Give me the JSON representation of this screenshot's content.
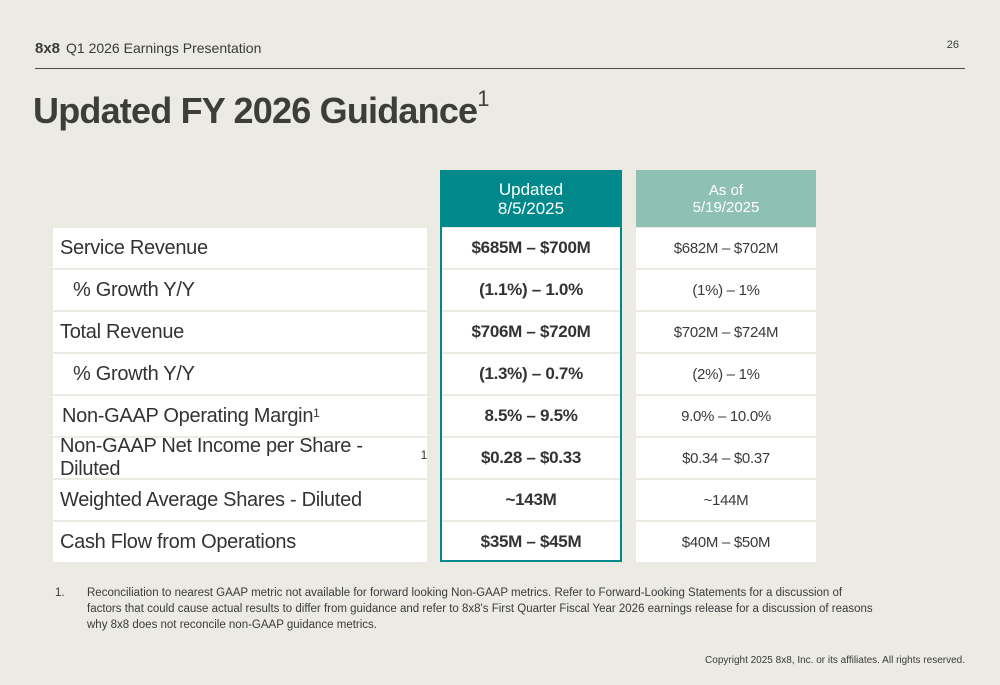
{
  "header": {
    "logo": "8x8",
    "deck_title": "Q1 2026 Earnings Presentation",
    "page_number": "26"
  },
  "slide": {
    "title": "Updated FY 2026 Guidance",
    "title_sup": "1"
  },
  "table": {
    "col_updated": {
      "line1": "Updated",
      "line2": "8/5/2025"
    },
    "col_asof": {
      "line1": "As of",
      "line2": "5/19/2025"
    },
    "rows": [
      {
        "label": "Service Revenue",
        "sup": "",
        "updated": "$685M – $700M",
        "asof": "$682M – $702M"
      },
      {
        "label": "% Growth Y/Y",
        "sup": "",
        "updated": "(1.1%) – 1.0%",
        "asof": "(1%) – 1%"
      },
      {
        "label": "Total Revenue",
        "sup": "",
        "updated": "$706M – $720M",
        "asof": "$702M – $724M"
      },
      {
        "label": "% Growth Y/Y",
        "sup": "",
        "updated": "(1.3%) – 0.7%",
        "asof": "(2%) – 1%"
      },
      {
        "label": "Non-GAAP Operating Margin",
        "sup": "1",
        "updated": "8.5% – 9.5%",
        "asof": "9.0% – 10.0%"
      },
      {
        "label": "Non-GAAP Net Income per Share - Diluted",
        "sup": "1",
        "updated": "$0.28 – $0.33",
        "asof": "$0.34 – $0.37"
      },
      {
        "label": "Weighted Average Shares - Diluted",
        "sup": "",
        "updated": "~143M",
        "asof": "~144M"
      },
      {
        "label": "Cash Flow from Operations",
        "sup": "",
        "updated": "$35M – $45M",
        "asof": "$40M – $50M"
      }
    ]
  },
  "footnote": {
    "number": "1.",
    "text": "Reconciliation to nearest GAAP metric not available for forward looking Non-GAAP metrics. Refer to Forward-Looking Statements for a discussion of factors that could cause actual results to differ from guidance and refer to 8x8's First Quarter Fiscal Year 2026 earnings release for a discussion of reasons why 8x8 does not reconcile non-GAAP guidance metrics."
  },
  "copyright": "Copyright 2025 8x8, Inc. or its affiliates. All rights reserved.",
  "colors": {
    "background": "#ebeae3",
    "updated_header": "#00888a",
    "asof_header": "#8fc0b4"
  }
}
